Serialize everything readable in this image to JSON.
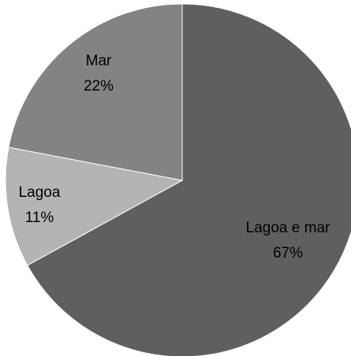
{
  "chart_data": {
    "type": "pie",
    "categories": [
      "Lagoa e mar",
      "Lagoa",
      "Mar"
    ],
    "values": [
      67,
      11,
      22
    ],
    "value_labels": [
      "67%",
      "11%",
      "22%"
    ],
    "colors": [
      "#5f5f5f",
      "#b4b4b4",
      "#838383"
    ]
  }
}
